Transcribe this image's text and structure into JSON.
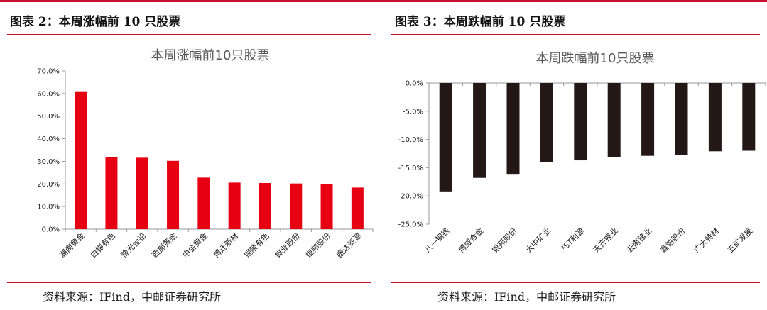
{
  "colors": {
    "accent": "#c8102e",
    "rise_bar": "#e60012",
    "fall_bar": "#231815"
  },
  "panels": [
    {
      "fig_title": "图表 2：本周涨幅前 10 只股票",
      "source": "资料来源：IFind，中邮证券研究所"
    },
    {
      "fig_title": "图表 3：本周跌幅前 10 只股票",
      "source": "资料来源：IFind，中邮证券研究所"
    }
  ],
  "chart_data": [
    {
      "type": "bar",
      "title": "本周涨幅前10只股票",
      "categories": [
        "湖南黄金",
        "白银有色",
        "豫光金铅",
        "西部黄金",
        "中金黄金",
        "博迁新材",
        "铜陵有色",
        "锌业股份",
        "恒邦股份",
        "盛达资源"
      ],
      "values": [
        61.0,
        31.8,
        31.6,
        30.2,
        22.8,
        20.6,
        20.4,
        20.2,
        19.9,
        18.4
      ],
      "ylim": [
        0,
        70
      ],
      "yticks": [
        0,
        10,
        20,
        30,
        40,
        50,
        60,
        70
      ],
      "ytick_labels": [
        "0.0%",
        "10.0%",
        "20.0%",
        "30.0%",
        "40.0%",
        "50.0%",
        "60.0%",
        "70.0%"
      ],
      "unit": "%"
    },
    {
      "type": "bar",
      "title": "本周跌幅前10只股票",
      "categories": [
        "八一钢铁",
        "博威合金",
        "银邦股份",
        "大中矿业",
        "*ST利源",
        "天齐锂业",
        "云南锗业",
        "鑫铂股份",
        "广大特材",
        "五矿发展"
      ],
      "values": [
        -19.2,
        -16.8,
        -16.1,
        -14.0,
        -13.7,
        -13.1,
        -12.9,
        -12.7,
        -12.1,
        -12.0
      ],
      "ylim": [
        -25,
        0
      ],
      "yticks": [
        0,
        -5,
        -10,
        -15,
        -20,
        -25
      ],
      "ytick_labels": [
        "0.0%",
        "-5.0%",
        "-10.0%",
        "-15.0%",
        "-20.0%",
        "-25.0%"
      ],
      "unit": "%"
    }
  ]
}
